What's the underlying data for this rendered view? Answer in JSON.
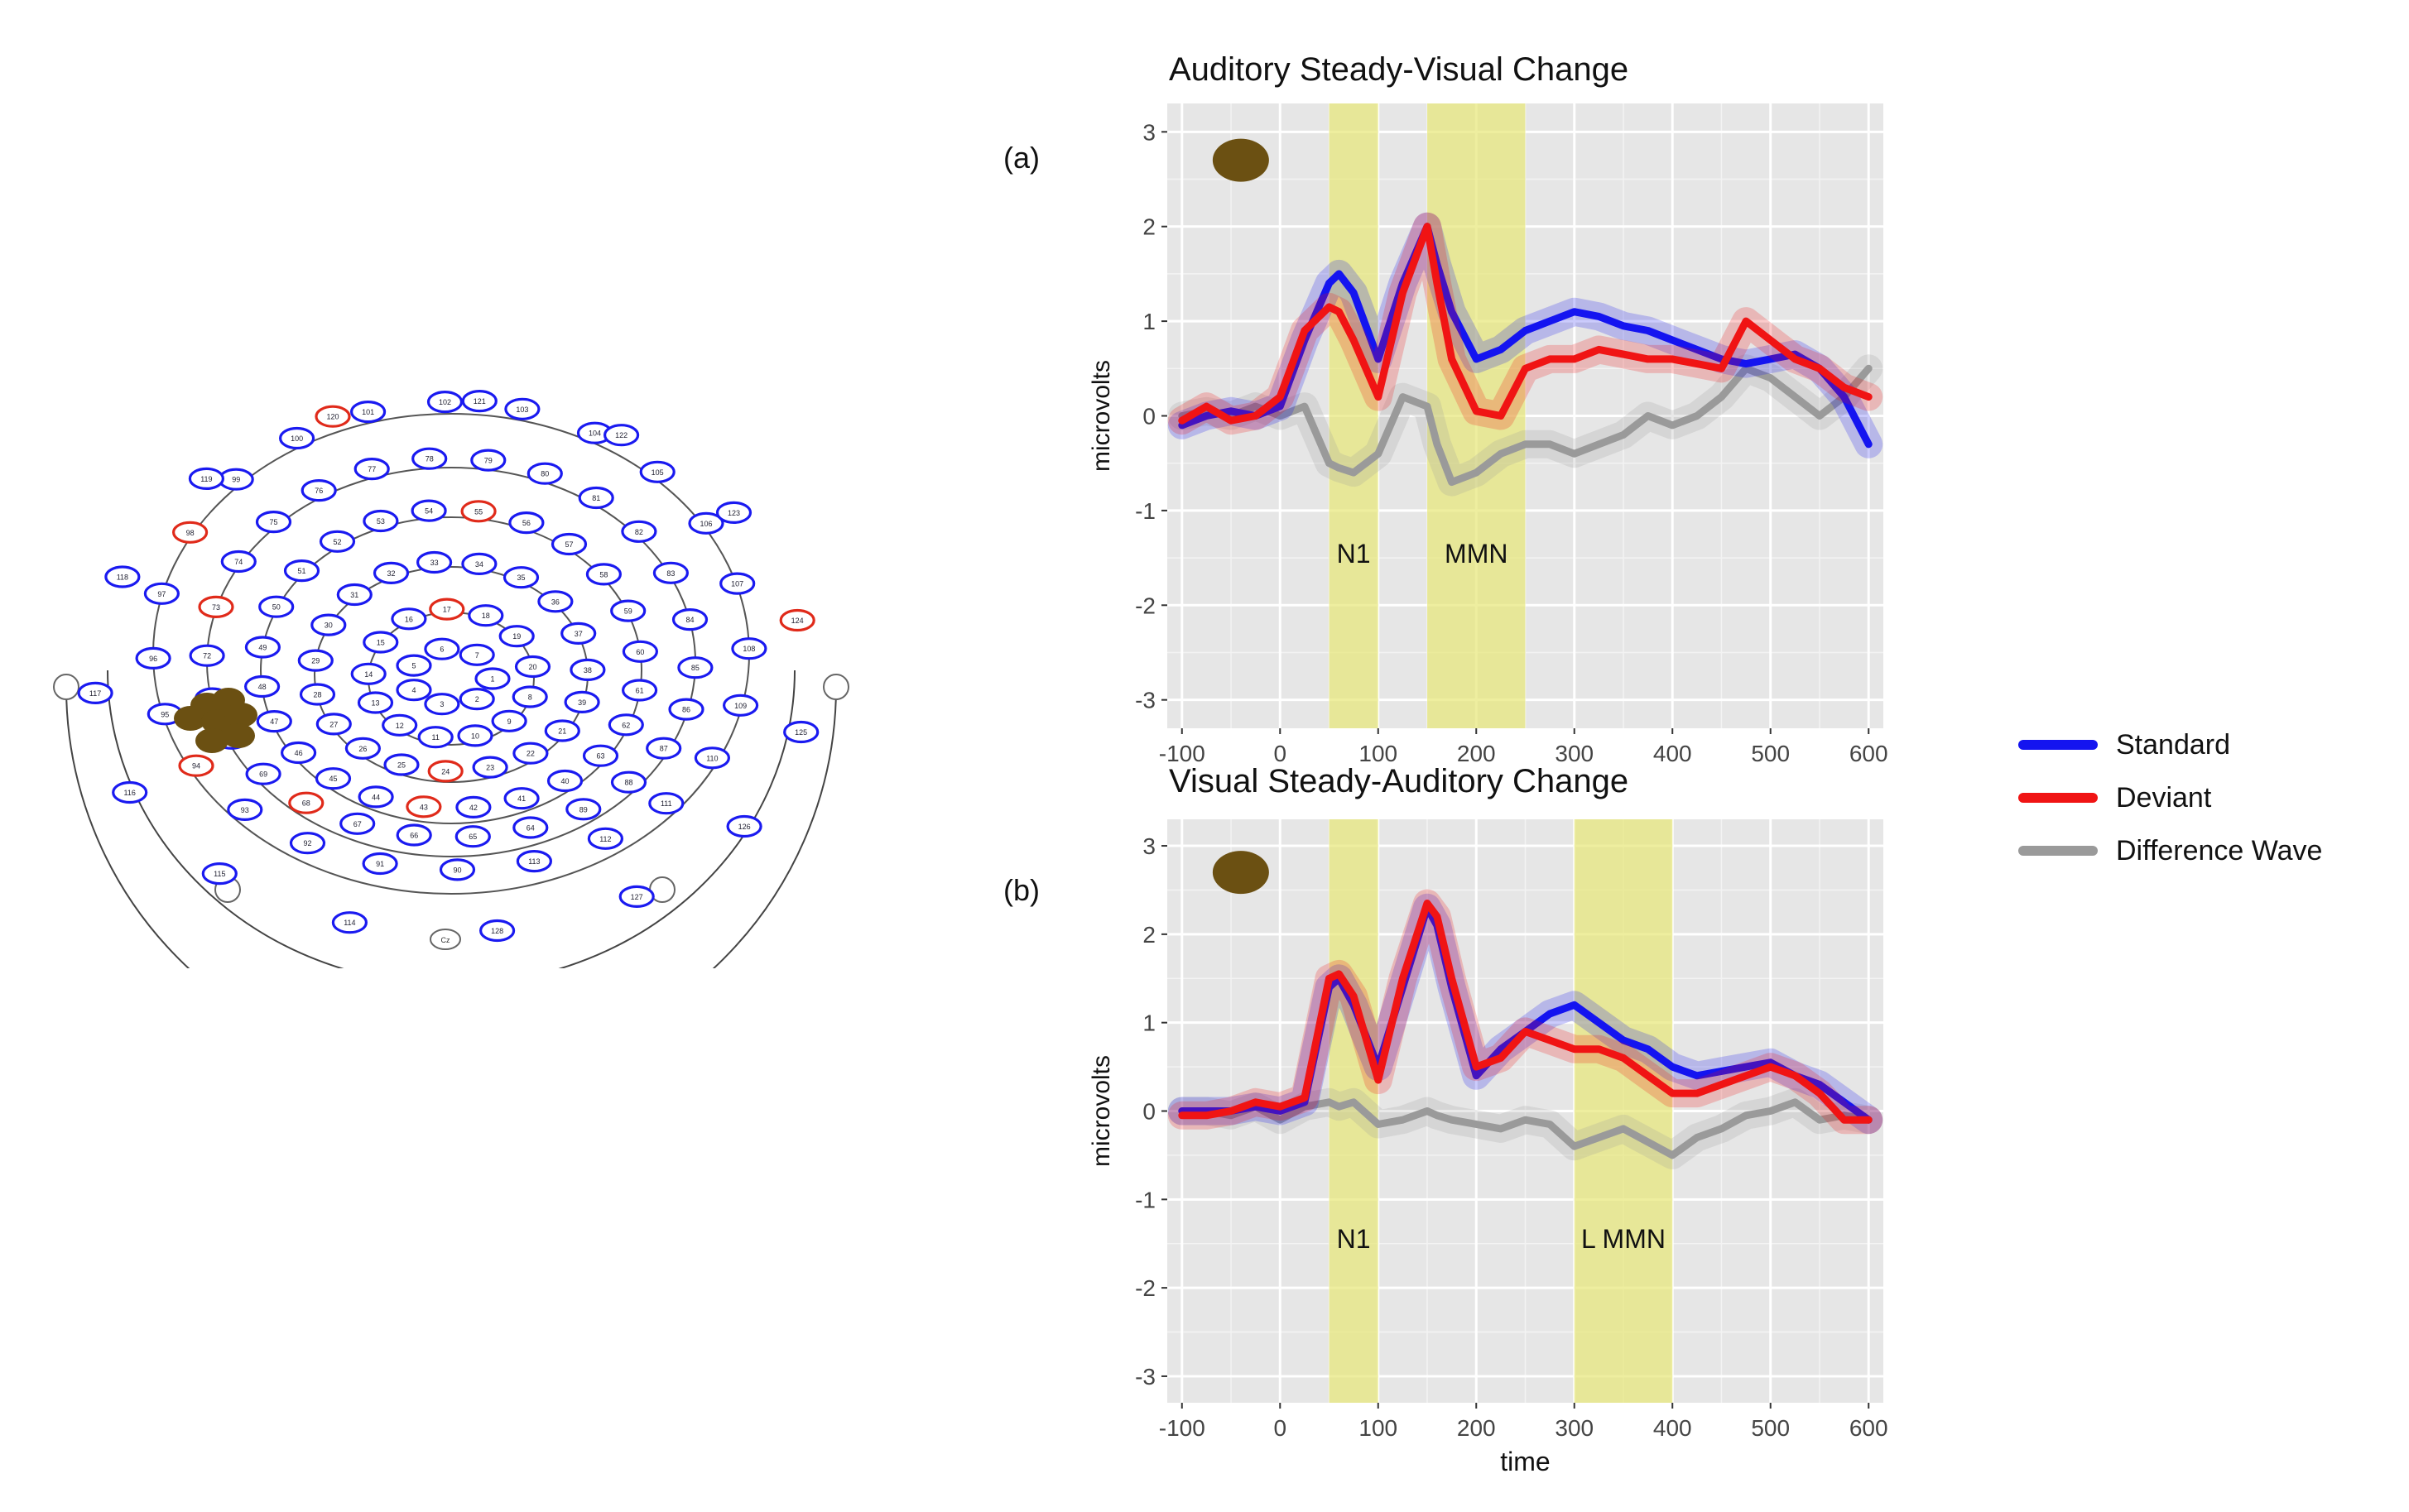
{
  "colors": {
    "standard": "#1414f0",
    "deviant": "#f01414",
    "difference": "#9a9a9a",
    "dev_drawn": "#f5a040",
    "window": "#e8e87a",
    "electrode_blue": "#1a1af0",
    "electrode_red": "#e02a1a",
    "electrode_fill": "#6b5012"
  },
  "legend": {
    "items": [
      {
        "key": "standard",
        "label": "Standard"
      },
      {
        "key": "deviant",
        "label": "Deviant"
      },
      {
        "key": "difference",
        "label": "Difference Wave"
      }
    ]
  },
  "chart_data": [
    {
      "type": "line",
      "panel_label": "(a)",
      "title": "Auditory Steady-Visual Change",
      "xlabel": "",
      "ylabel": "microvolts",
      "xlim": [
        -115,
        615
      ],
      "ylim": [
        -3.3,
        3.3
      ],
      "xticks": [
        -100,
        0,
        100,
        200,
        300,
        400,
        500,
        600
      ],
      "yticks": [
        -3,
        -2,
        -1,
        0,
        1,
        2,
        3
      ],
      "windows": [
        {
          "label": "N1",
          "x0": 50,
          "x1": 100
        },
        {
          "label": "MMN",
          "x0": 150,
          "x1": 250
        }
      ],
      "x": [
        -100,
        -75,
        -50,
        -25,
        0,
        25,
        50,
        60,
        75,
        100,
        125,
        150,
        160,
        175,
        200,
        225,
        250,
        275,
        300,
        325,
        350,
        375,
        400,
        425,
        450,
        475,
        500,
        525,
        550,
        575,
        600
      ],
      "series": [
        {
          "name": "Standard",
          "key": "standard",
          "values": [
            -0.1,
            0.0,
            0.05,
            0.0,
            0.1,
            0.8,
            1.4,
            1.5,
            1.3,
            0.6,
            1.4,
            2.0,
            1.6,
            1.1,
            0.6,
            0.7,
            0.9,
            1.0,
            1.1,
            1.05,
            0.95,
            0.9,
            0.8,
            0.7,
            0.6,
            0.55,
            0.6,
            0.65,
            0.5,
            0.2,
            -0.3
          ]
        },
        {
          "name": "Deviant",
          "key": "deviant",
          "values": [
            -0.05,
            0.1,
            -0.05,
            0.0,
            0.2,
            0.9,
            1.15,
            1.1,
            0.8,
            0.2,
            1.3,
            2.0,
            1.4,
            0.6,
            0.05,
            0.0,
            0.5,
            0.6,
            0.6,
            0.7,
            0.65,
            0.6,
            0.6,
            0.55,
            0.5,
            1.0,
            0.8,
            0.6,
            0.5,
            0.3,
            0.2
          ]
        },
        {
          "name": "Difference Wave",
          "key": "difference",
          "values": [
            0.0,
            0.05,
            0.0,
            0.1,
            0.0,
            0.1,
            -0.5,
            -0.55,
            -0.6,
            -0.4,
            0.2,
            0.1,
            -0.3,
            -0.7,
            -0.6,
            -0.4,
            -0.3,
            -0.3,
            -0.4,
            -0.3,
            -0.2,
            0.0,
            -0.1,
            0.0,
            0.2,
            0.5,
            0.4,
            0.2,
            0.0,
            0.2,
            0.5
          ]
        }
      ]
    },
    {
      "type": "line",
      "panel_label": "(b)",
      "title": "Visual Steady-Auditory Change",
      "xlabel": "time",
      "ylabel": "microvolts",
      "xlim": [
        -115,
        615
      ],
      "ylim": [
        -3.3,
        3.3
      ],
      "xticks": [
        -100,
        0,
        100,
        200,
        300,
        400,
        500,
        600
      ],
      "yticks": [
        -3,
        -2,
        -1,
        0,
        1,
        2,
        3
      ],
      "windows": [
        {
          "label": "N1",
          "x0": 50,
          "x1": 100
        },
        {
          "label": "L MMN",
          "x0": 300,
          "x1": 400
        }
      ],
      "x": [
        -100,
        -75,
        -50,
        -25,
        0,
        25,
        50,
        60,
        75,
        100,
        125,
        150,
        160,
        175,
        200,
        225,
        250,
        275,
        300,
        325,
        350,
        375,
        400,
        425,
        450,
        475,
        500,
        525,
        550,
        575,
        600
      ],
      "series": [
        {
          "name": "Standard",
          "key": "standard",
          "values": [
            0.0,
            0.0,
            0.0,
            0.05,
            0.0,
            0.1,
            1.4,
            1.5,
            1.2,
            0.5,
            1.4,
            2.3,
            2.1,
            1.4,
            0.4,
            0.7,
            0.9,
            1.1,
            1.2,
            1.0,
            0.8,
            0.7,
            0.5,
            0.4,
            0.45,
            0.5,
            0.55,
            0.4,
            0.3,
            0.1,
            -0.1
          ]
        },
        {
          "name": "Deviant",
          "key": "deviant",
          "values": [
            -0.05,
            -0.05,
            0.0,
            0.1,
            0.05,
            0.15,
            1.5,
            1.55,
            1.3,
            0.35,
            1.5,
            2.35,
            2.2,
            1.5,
            0.5,
            0.6,
            0.9,
            0.8,
            0.7,
            0.7,
            0.6,
            0.4,
            0.2,
            0.2,
            0.3,
            0.4,
            0.5,
            0.4,
            0.2,
            -0.1,
            -0.1
          ]
        },
        {
          "name": "Difference Wave",
          "key": "difference",
          "values": [
            0.0,
            0.0,
            -0.05,
            0.05,
            -0.1,
            0.05,
            0.1,
            0.05,
            0.1,
            -0.15,
            -0.1,
            0.0,
            -0.05,
            -0.1,
            -0.15,
            -0.2,
            -0.1,
            -0.15,
            -0.4,
            -0.3,
            -0.2,
            -0.35,
            -0.5,
            -0.3,
            -0.2,
            -0.05,
            0.0,
            0.1,
            -0.1,
            -0.05,
            -0.1
          ]
        }
      ]
    }
  ],
  "head_map": {
    "reference_label": "Cz",
    "electrode_labels": [
      "1",
      "2",
      "3",
      "4",
      "5",
      "6",
      "7",
      "8",
      "9",
      "10",
      "11",
      "12",
      "13",
      "14",
      "15",
      "16",
      "17",
      "18",
      "19",
      "20",
      "21",
      "22",
      "23",
      "24",
      "25",
      "26",
      "27",
      "28",
      "29",
      "30",
      "31",
      "32",
      "33",
      "34",
      "35",
      "36",
      "37",
      "38",
      "39",
      "40",
      "41",
      "42",
      "43",
      "44",
      "45",
      "46",
      "47",
      "48",
      "49",
      "50",
      "51",
      "52",
      "53",
      "54",
      "55",
      "56",
      "57",
      "58",
      "59",
      "60",
      "61",
      "62",
      "63",
      "64",
      "65",
      "66",
      "67",
      "68",
      "69",
      "70",
      "71",
      "72",
      "73",
      "74",
      "75",
      "76",
      "77",
      "78",
      "79",
      "80",
      "81",
      "82",
      "83",
      "84",
      "85",
      "86",
      "87",
      "88",
      "89",
      "90",
      "91",
      "92",
      "93",
      "94",
      "95",
      "96",
      "97",
      "98",
      "99",
      "100",
      "101",
      "102",
      "103",
      "104",
      "105",
      "106",
      "107",
      "108",
      "109",
      "110",
      "111",
      "112",
      "113",
      "114",
      "115",
      "116",
      "117",
      "118",
      "119",
      "120",
      "121",
      "122",
      "123",
      "124",
      "125",
      "126",
      "127",
      "128"
    ],
    "highlighted_labels": [
      "17",
      "24",
      "124",
      "43",
      "120",
      "55",
      "98",
      "73",
      "68",
      "94"
    ],
    "region_count": 6
  }
}
